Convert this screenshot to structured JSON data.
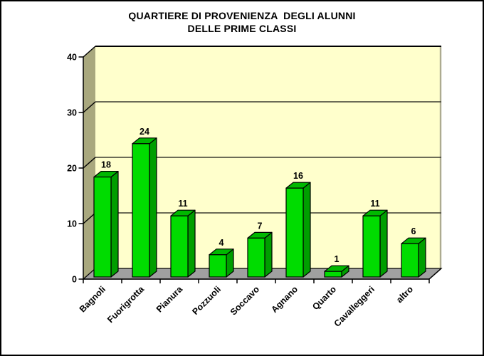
{
  "title": {
    "line1": "QUARTIERE DI PROVENIENZA  DEGLI ALUNNI",
    "line2": "DELLE PRIME CLASSI"
  },
  "chart_data": {
    "type": "bar",
    "style": "3d-column",
    "title": "QUARTIERE DI PROVENIENZA DEGLI ALUNNI DELLE PRIME CLASSI",
    "categories": [
      "Bagnoli",
      "Fuorigrotta",
      "Pianura",
      "Pozzuoli",
      "Soccavo",
      "Agnano",
      "Quarto",
      "Cavalleggeri",
      "altro"
    ],
    "values": [
      18,
      24,
      11,
      4,
      7,
      16,
      1,
      11,
      6
    ],
    "value_labels": [
      "18",
      "24",
      "11",
      "4",
      "7",
      "16",
      "1",
      "11",
      "6"
    ],
    "xlabel": "",
    "ylabel": "",
    "ylim": [
      0,
      40
    ],
    "yticks": [
      0,
      10,
      20,
      30,
      40
    ],
    "grid": true,
    "legend": false,
    "colors": {
      "bar_front": "#00DC00",
      "bar_top": "#00B800",
      "bar_side": "#009E00",
      "bar_outline": "#000000",
      "wall_back": "#FFFFCC",
      "wall_side": "#A9A87E",
      "wall_right_edge": "#ADAB90",
      "floor": "#A0A0A0",
      "gridline": "#3C3C30",
      "axis": "#000000",
      "text": "#000000",
      "background": "#FFFFFF"
    }
  }
}
